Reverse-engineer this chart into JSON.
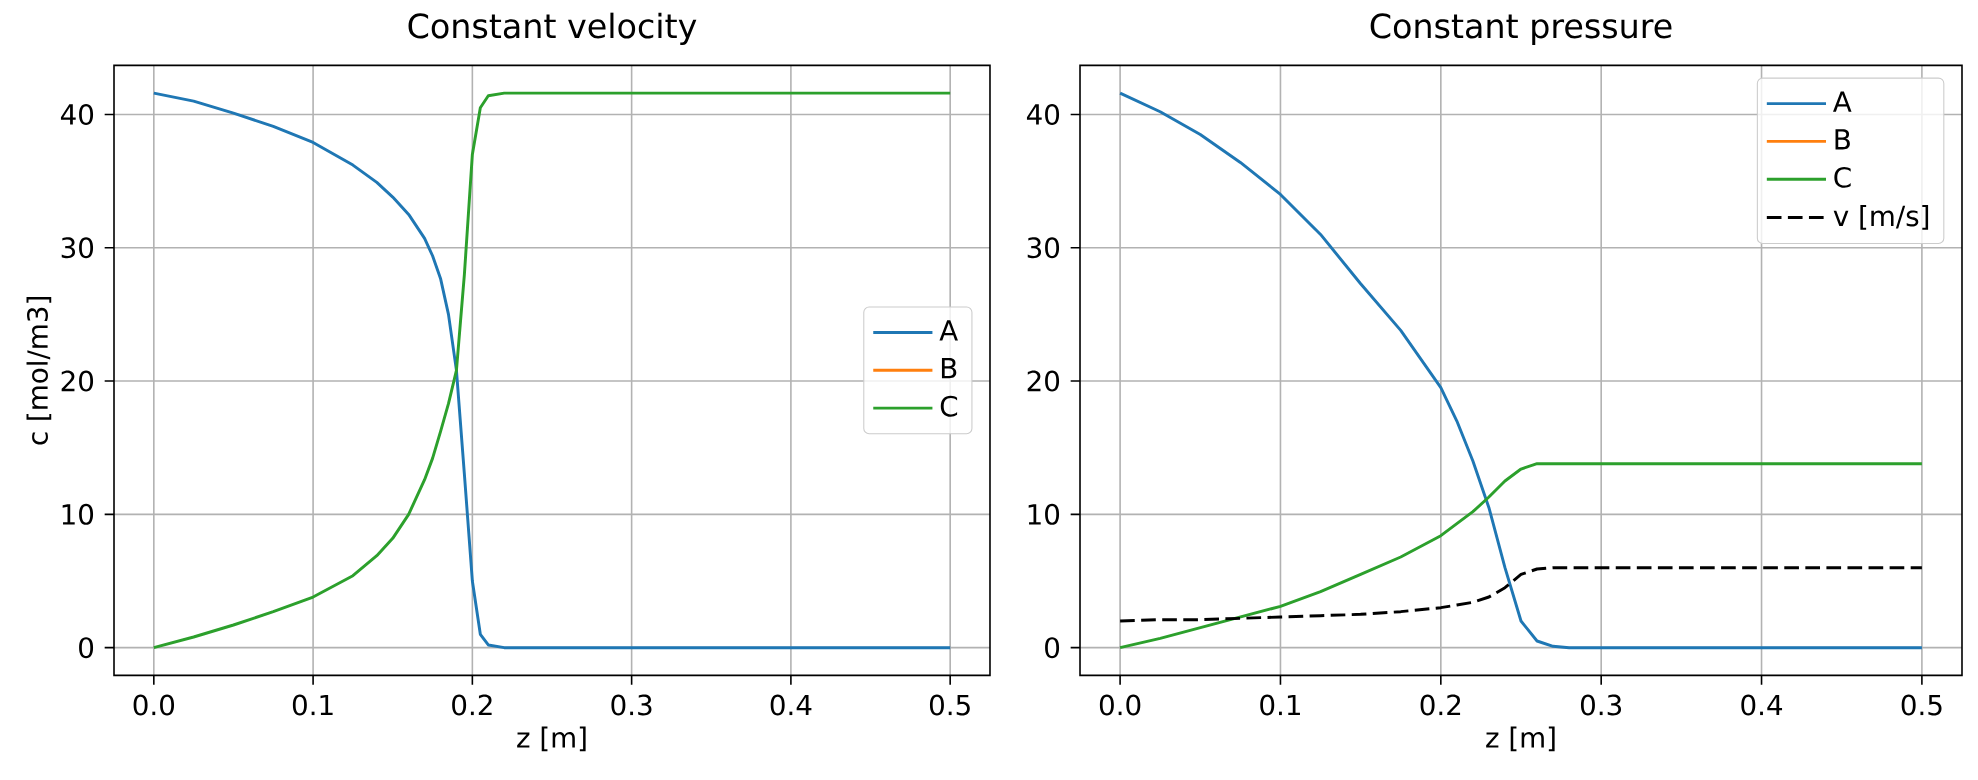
{
  "chart_data": [
    {
      "type": "line",
      "title": "Constant velocity",
      "xlabel": "z [m]",
      "ylabel": "c [mol/m3]",
      "x": [
        0,
        0.025,
        0.05,
        0.075,
        0.1,
        0.125,
        0.14,
        0.15,
        0.16,
        0.17,
        0.175,
        0.18,
        0.185,
        0.19,
        0.195,
        0.2,
        0.205,
        0.21,
        0.22,
        0.3,
        0.4,
        0.5
      ],
      "series": [
        {
          "name": "A",
          "color": "#1f77b4",
          "values": [
            41.6,
            41,
            40.1,
            39.1,
            37.9,
            36.2,
            34.9,
            33.8,
            32.5,
            30.7,
            29.4,
            27.7,
            25,
            20.8,
            13,
            5,
            1,
            0.2,
            0,
            0,
            0,
            0
          ]
        },
        {
          "name": "B",
          "color": "#ff7f0e",
          "values": [
            null,
            null,
            null,
            null,
            null,
            null,
            null,
            null,
            null,
            null,
            null,
            null,
            null,
            null,
            null,
            null,
            null,
            null,
            null,
            null,
            null,
            null
          ]
        },
        {
          "name": "C",
          "color": "#2ca02c",
          "values": [
            0,
            0.8,
            1.7,
            2.7,
            3.8,
            5.4,
            6.9,
            8.2,
            10,
            12.6,
            14.2,
            16.2,
            18.3,
            20.8,
            28,
            37,
            40.5,
            41.4,
            41.6,
            41.6,
            41.6,
            41.6
          ]
        }
      ],
      "xlim": [
        -0.025,
        0.525
      ],
      "ylim": [
        -2.08,
        43.68
      ],
      "xticks": [
        {
          "value": 0,
          "label": "0.0"
        },
        0.1,
        0.2,
        0.3,
        0.4,
        0.5
      ],
      "yticks": [
        0,
        10,
        20,
        30,
        40
      ],
      "grid": true,
      "legend": "right"
    },
    {
      "type": "line",
      "title": "Constant pressure",
      "xlabel": "z [m]",
      "x": [
        0,
        0.025,
        0.05,
        0.075,
        0.1,
        0.125,
        0.15,
        0.175,
        0.2,
        0.21,
        0.22,
        0.23,
        0.24,
        0.25,
        0.26,
        0.27,
        0.28,
        0.4,
        0.5
      ],
      "series": [
        {
          "name": "A",
          "color": "#1f77b4",
          "values": [
            41.6,
            40.2,
            38.5,
            36.4,
            34,
            31,
            27.3,
            23.8,
            19.5,
            17,
            14,
            10.5,
            6,
            2,
            0.5,
            0.1,
            0,
            0,
            0
          ]
        },
        {
          "name": "B",
          "color": "#ff7f0e",
          "values": [
            null,
            null,
            null,
            null,
            null,
            null,
            null,
            null,
            null,
            null,
            null,
            null,
            null,
            null,
            null,
            null,
            null,
            null,
            null
          ]
        },
        {
          "name": "C",
          "color": "#2ca02c",
          "values": [
            0,
            0.7,
            1.5,
            2.3,
            3.1,
            4.2,
            5.5,
            6.8,
            8.4,
            9.3,
            10.2,
            11.3,
            12.5,
            13.4,
            13.8,
            13.8,
            13.8,
            13.8,
            13.8
          ]
        },
        {
          "name": "v [m/s]",
          "color": "#000000",
          "line_style": "dashed",
          "values": [
            2,
            2.1,
            2.1,
            2.2,
            2.3,
            2.4,
            2.5,
            2.7,
            3,
            3.2,
            3.4,
            3.8,
            4.5,
            5.5,
            5.9,
            6,
            6,
            6,
            6
          ]
        }
      ],
      "xlim": [
        -0.025,
        0.525
      ],
      "ylim": [
        -2.08,
        43.68
      ],
      "xticks": [
        {
          "value": 0,
          "label": "0.0"
        },
        0.1,
        0.2,
        0.3,
        0.4,
        0.5
      ],
      "yticks": [
        0,
        10,
        20,
        30,
        40
      ],
      "grid": true,
      "legend": "top right"
    }
  ]
}
